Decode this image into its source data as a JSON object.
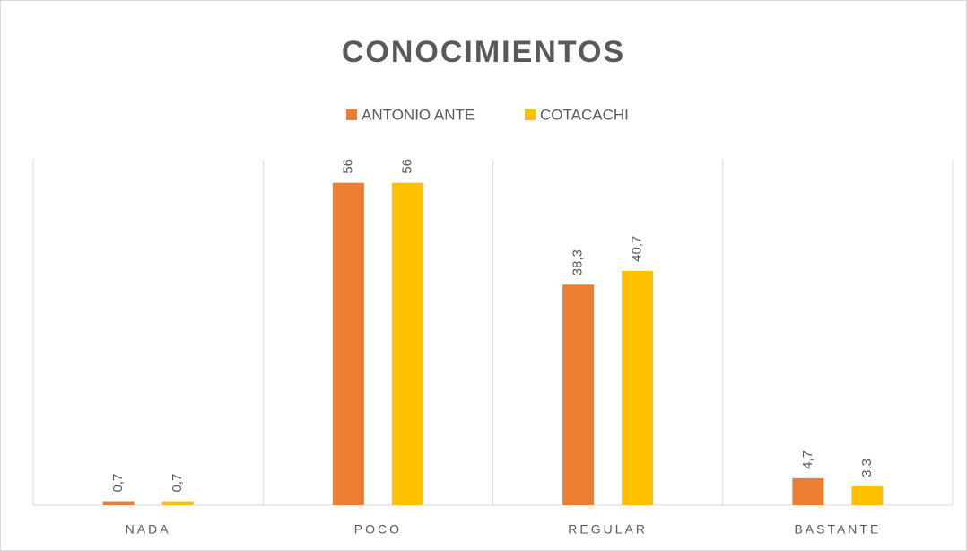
{
  "chart_data": {
    "type": "bar",
    "title": "CONOCIMIENTOS",
    "categories": [
      "NADA",
      "POCO",
      "REGULAR",
      "BASTANTE"
    ],
    "series": [
      {
        "name": "ANTONIO ANTE",
        "color": "#ED7D31",
        "values": [
          0.7,
          56,
          38.3,
          4.7
        ],
        "value_labels": [
          "0,7",
          "56",
          "38,3",
          "4,7"
        ]
      },
      {
        "name": "COTACACHI",
        "color": "#FFC000",
        "values": [
          0.7,
          56,
          40.7,
          3.3
        ],
        "value_labels": [
          "0,7",
          "56",
          "40,7",
          "3,3"
        ]
      }
    ],
    "ylim": [
      0,
      60
    ],
    "legend": "top"
  }
}
